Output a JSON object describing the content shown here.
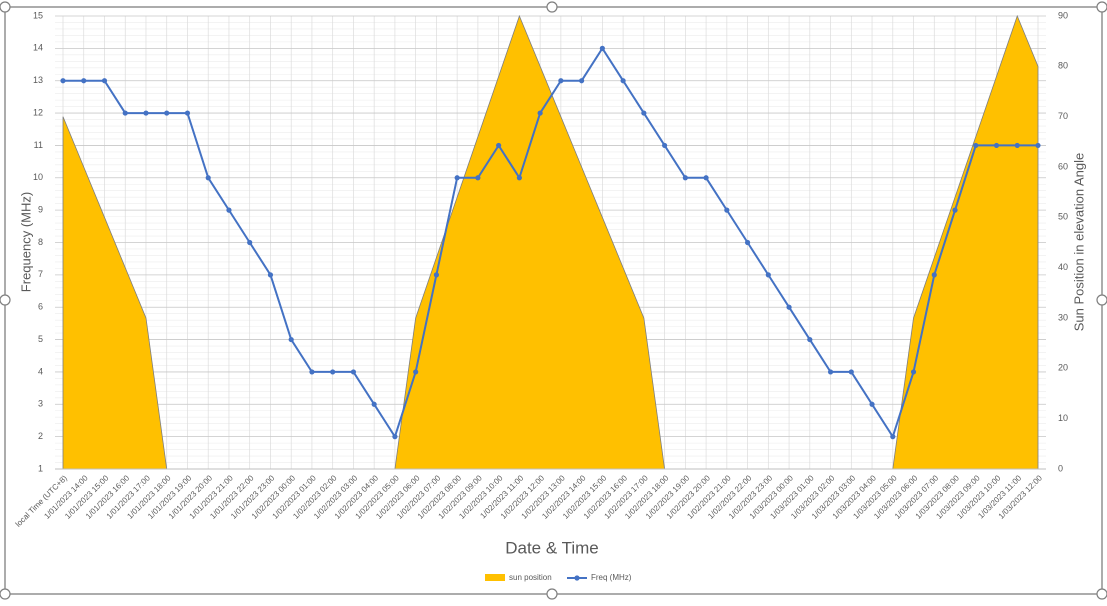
{
  "chart_data": {
    "type": "area-line",
    "x_title": "Date & Time",
    "y_title": "Frequency (MHz)",
    "y2_title": "Sun Position in elevation Angle",
    "categories": [
      "local Time (UTC+8)",
      "1/01/2023 14:00",
      "1/01/2023 15:00",
      "1/01/2023 16:00",
      "1/01/2023 17:00",
      "1/01/2023 18:00",
      "1/01/2023 19:00",
      "1/01/2023 20:00",
      "1/01/2023 21:00",
      "1/01/2023 22:00",
      "1/01/2023 23:00",
      "1/02/2023 00:00",
      "1/02/2023 01:00",
      "1/02/2023 02:00",
      "1/02/2023 03:00",
      "1/02/2023 04:00",
      "1/02/2023 05:00",
      "1/02/2023 06:00",
      "1/02/2023 07:00",
      "1/02/2023 08:00",
      "1/02/2023 09:00",
      "1/02/2023 10:00",
      "1/02/2023 11:00",
      "1/02/2023 12:00",
      "1/02/2023 13:00",
      "1/02/2023 14:00",
      "1/02/2023 15:00",
      "1/02/2023 16:00",
      "1/02/2023 17:00",
      "1/02/2023 18:00",
      "1/02/2023 19:00",
      "1/02/2023 20:00",
      "1/02/2023 21:00",
      "1/02/2023 22:00",
      "1/02/2023 23:00",
      "1/03/2023 00:00",
      "1/03/2023 01:00",
      "1/03/2023 02:00",
      "1/03/2023 03:00",
      "1/03/2023 04:00",
      "1/03/2023 05:00",
      "1/03/2023 06:00",
      "1/03/2023 07:00",
      "1/03/2023 08:00",
      "1/03/2023 09:00",
      "1/03/2023 10:00",
      "1/03/2023 11:00",
      "1/03/2023 12:00"
    ],
    "series": [
      {
        "name": "sun position",
        "type": "area",
        "axis": "y2",
        "color": "#ffc000",
        "values": [
          70,
          60,
          50,
          40,
          30,
          0,
          0,
          0,
          0,
          0,
          0,
          0,
          0,
          0,
          0,
          0,
          0,
          30,
          42,
          54,
          66,
          78,
          90,
          80,
          70,
          60,
          50,
          40,
          30,
          0,
          0,
          0,
          0,
          0,
          0,
          0,
          0,
          0,
          0,
          0,
          0,
          30,
          42,
          54,
          66,
          78,
          90,
          80
        ]
      },
      {
        "name": "Freq (MHz)",
        "type": "line",
        "axis": "y",
        "color": "#4472c4",
        "values": [
          13,
          13,
          13,
          12,
          12,
          12,
          12,
          10,
          9,
          8,
          7,
          5,
          4,
          4,
          4,
          3,
          2,
          4,
          7,
          10,
          10,
          11,
          10,
          12,
          13,
          13,
          14,
          13,
          12,
          11,
          10,
          10,
          9,
          8,
          7,
          6,
          5,
          4,
          4,
          3,
          2,
          4,
          7,
          9,
          11,
          11,
          11,
          11
        ]
      }
    ],
    "ylim": [
      1,
      15
    ],
    "yticks": [
      1,
      2,
      3,
      4,
      5,
      6,
      7,
      8,
      9,
      10,
      11,
      12,
      13,
      14,
      15
    ],
    "y2lim": [
      0,
      90
    ],
    "y2ticks": [
      0,
      10,
      20,
      30,
      40,
      50,
      60,
      70,
      80,
      90
    ],
    "grid": true,
    "legend": "bottom"
  }
}
